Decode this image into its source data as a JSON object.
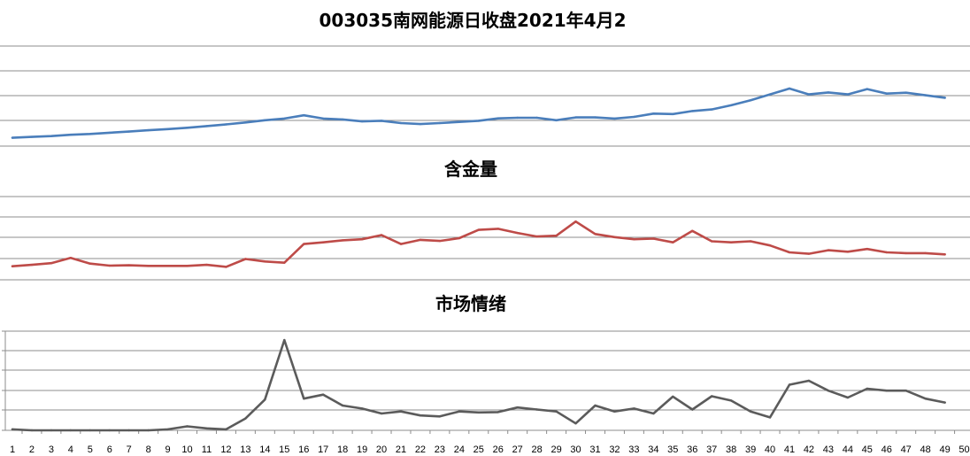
{
  "chart_data": [
    {
      "type": "line",
      "title": "003035南网能源日收盘2021年4月2",
      "color": "#4a7ebb",
      "grid": true,
      "ylim": [
        0,
        6
      ],
      "x": [
        1,
        2,
        3,
        4,
        5,
        6,
        7,
        8,
        9,
        10,
        11,
        12,
        13,
        14,
        15,
        16,
        17,
        18,
        19,
        20,
        21,
        22,
        23,
        24,
        25,
        26,
        27,
        28,
        29,
        30,
        31,
        32,
        33,
        34,
        35,
        36,
        37,
        38,
        39,
        40,
        41,
        42,
        43,
        44,
        45,
        46,
        47,
        48,
        49
      ],
      "series": [
        {
          "values": [
            0.5,
            0.55,
            0.6,
            0.68,
            0.73,
            0.8,
            0.87,
            0.95,
            1.02,
            1.1,
            1.2,
            1.3,
            1.42,
            1.55,
            1.65,
            1.85,
            1.65,
            1.6,
            1.48,
            1.52,
            1.38,
            1.32,
            1.38,
            1.45,
            1.52,
            1.66,
            1.7,
            1.7,
            1.55,
            1.72,
            1.72,
            1.65,
            1.75,
            1.95,
            1.92,
            2.1,
            2.2,
            2.45,
            2.75,
            3.1,
            3.45,
            3.1,
            3.22,
            3.1,
            3.42,
            3.15,
            3.2,
            3.05,
            2.9
          ]
        }
      ]
    },
    {
      "type": "line",
      "title": "含金量",
      "color": "#be4b48",
      "grid": true,
      "ylim": [
        0,
        4
      ],
      "x": [
        1,
        2,
        3,
        4,
        5,
        6,
        7,
        8,
        9,
        10,
        11,
        12,
        13,
        14,
        15,
        16,
        17,
        18,
        19,
        20,
        21,
        22,
        23,
        24,
        25,
        26,
        27,
        28,
        29,
        30,
        31,
        32,
        33,
        34,
        35,
        36,
        37,
        38,
        39,
        40,
        41,
        42,
        43,
        44,
        45,
        46,
        47,
        48,
        49
      ],
      "series": [
        {
          "values": [
            0.65,
            0.72,
            0.8,
            1.05,
            0.78,
            0.68,
            0.7,
            0.67,
            0.67,
            0.67,
            0.72,
            0.62,
            1.0,
            0.88,
            0.82,
            1.72,
            1.8,
            1.9,
            1.95,
            2.15,
            1.72,
            1.92,
            1.87,
            2.0,
            2.4,
            2.45,
            2.25,
            2.08,
            2.12,
            2.8,
            2.2,
            2.05,
            1.95,
            1.98,
            1.8,
            2.35,
            1.85,
            1.8,
            1.85,
            1.65,
            1.32,
            1.25,
            1.42,
            1.35,
            1.48,
            1.32,
            1.28,
            1.28,
            1.22
          ]
        }
      ]
    },
    {
      "type": "line",
      "title": "市场情绪",
      "color": "#5b5b5b",
      "grid": true,
      "ylim": [
        0,
        5
      ],
      "x": [
        1,
        2,
        3,
        4,
        5,
        6,
        7,
        8,
        9,
        10,
        11,
        12,
        13,
        14,
        15,
        16,
        17,
        18,
        19,
        20,
        21,
        22,
        23,
        24,
        25,
        26,
        27,
        28,
        29,
        30,
        31,
        32,
        33,
        34,
        35,
        36,
        37,
        38,
        39,
        40,
        41,
        42,
        43,
        44,
        45,
        46,
        47,
        48,
        49
      ],
      "x_ticks": [
        1,
        2,
        3,
        4,
        5,
        6,
        7,
        8,
        9,
        10,
        11,
        12,
        13,
        14,
        15,
        16,
        17,
        18,
        19,
        20,
        21,
        22,
        23,
        24,
        25,
        26,
        27,
        28,
        29,
        30,
        31,
        32,
        33,
        34,
        35,
        36,
        37,
        38,
        39,
        40,
        41,
        42,
        43,
        44,
        45,
        46,
        47,
        48,
        49,
        50
      ],
      "series": [
        {
          "values": [
            0.05,
            0.0,
            0.0,
            0.0,
            0.0,
            0.0,
            0.0,
            0.0,
            0.05,
            0.2,
            0.1,
            0.05,
            0.6,
            1.55,
            4.55,
            1.6,
            1.8,
            1.25,
            1.1,
            0.85,
            0.95,
            0.75,
            0.7,
            0.95,
            0.9,
            0.92,
            1.15,
            1.05,
            0.95,
            0.35,
            1.25,
            0.95,
            1.1,
            0.85,
            1.7,
            1.05,
            1.72,
            1.5,
            0.95,
            0.65,
            2.3,
            2.5,
            2.0,
            1.65,
            2.1,
            2.0,
            2.0,
            1.6,
            1.4
          ]
        }
      ]
    }
  ]
}
